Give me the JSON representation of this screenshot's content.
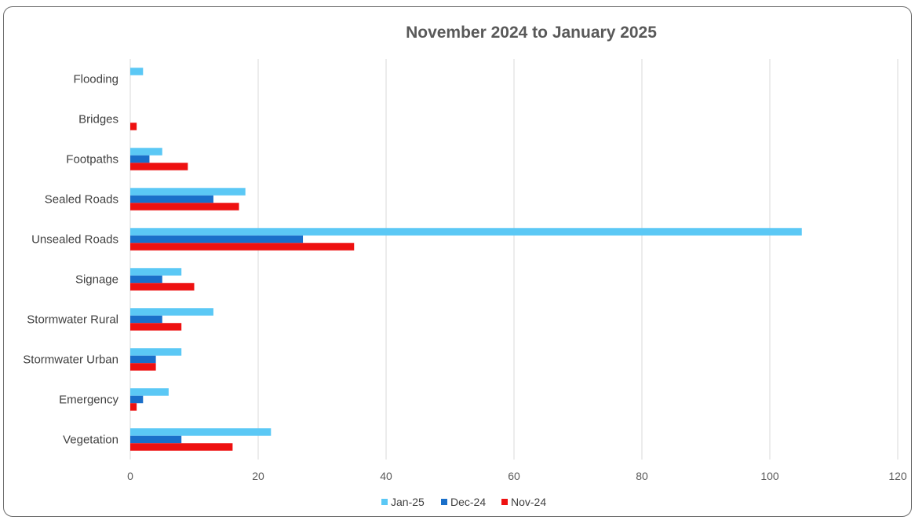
{
  "chart_data": {
    "type": "bar",
    "orientation": "horizontal",
    "title": "November 2024 to  January 2025",
    "xlabel": "",
    "ylabel": "",
    "xlim": [
      0,
      120
    ],
    "x_ticks": [
      0,
      20,
      40,
      60,
      80,
      100,
      120
    ],
    "grid": true,
    "legend_position": "bottom",
    "categories": [
      "Flooding",
      "Bridges",
      "Footpaths",
      "Sealed Roads",
      "Unsealed Roads",
      "Signage",
      "Stormwater Rural",
      "Stormwater Urban",
      "Emergency",
      "Vegetation"
    ],
    "series": [
      {
        "name": "Jan-25",
        "color": "#5bc8f5",
        "values": [
          2,
          0,
          5,
          18,
          105,
          8,
          13,
          8,
          6,
          22
        ]
      },
      {
        "name": "Dec-24",
        "color": "#1a6fc9",
        "values": [
          0,
          0,
          3,
          13,
          27,
          5,
          5,
          4,
          2,
          8
        ]
      },
      {
        "name": "Nov-24",
        "color": "#ee1111",
        "values": [
          0,
          1,
          9,
          17,
          35,
          10,
          8,
          4,
          1,
          16
        ]
      }
    ]
  }
}
